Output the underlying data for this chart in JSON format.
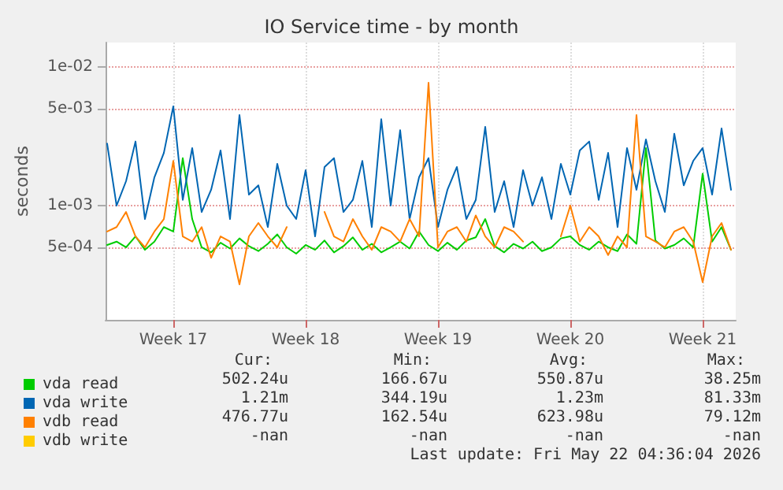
{
  "chart_data": {
    "type": "line",
    "title": "IO Service time - by month",
    "ylabel": "seconds",
    "log": "y",
    "grid": true,
    "legend": "bottom",
    "marker": "none",
    "line_style": "solid",
    "ylim": [
      0.00015,
      0.015
    ],
    "yticks": [
      {
        "value": 0.0005,
        "label": "5e-04"
      },
      {
        "value": 0.001,
        "label": "1e-03"
      },
      {
        "value": 0.005,
        "label": "5e-03"
      },
      {
        "value": 0.01,
        "label": "1e-02"
      }
    ],
    "xlim": [
      "2026-04-19T22:00",
      "2026-05-23T06:00"
    ],
    "xticks": [
      {
        "value": "2026-04-23T12:00",
        "label": "Week 17"
      },
      {
        "value": "2026-04-30T12:00",
        "label": "Week 18"
      },
      {
        "value": "2026-05-07T12:00",
        "label": "Week 19"
      },
      {
        "value": "2026-05-14T12:00",
        "label": "Week 20"
      },
      {
        "value": "2026-05-21T12:00",
        "label": "Week 21"
      }
    ],
    "x": [
      "2026-04-20T00:00",
      "2026-04-20T12:00",
      "2026-04-21T00:00",
      "2026-04-21T12:00",
      "2026-04-22T00:00",
      "2026-04-22T12:00",
      "2026-04-23T00:00",
      "2026-04-23T12:00",
      "2026-04-24T00:00",
      "2026-04-24T12:00",
      "2026-04-25T00:00",
      "2026-04-25T12:00",
      "2026-04-26T00:00",
      "2026-04-26T12:00",
      "2026-04-27T00:00",
      "2026-04-27T12:00",
      "2026-04-28T00:00",
      "2026-04-28T12:00",
      "2026-04-29T00:00",
      "2026-04-29T12:00",
      "2026-04-30T00:00",
      "2026-04-30T12:00",
      "2026-05-01T00:00",
      "2026-05-01T12:00",
      "2026-05-02T00:00",
      "2026-05-02T12:00",
      "2026-05-03T00:00",
      "2026-05-03T12:00",
      "2026-05-04T00:00",
      "2026-05-04T12:00",
      "2026-05-05T00:00",
      "2026-05-05T12:00",
      "2026-05-06T00:00",
      "2026-05-06T12:00",
      "2026-05-07T00:00",
      "2026-05-07T12:00",
      "2026-05-08T00:00",
      "2026-05-08T12:00",
      "2026-05-09T00:00",
      "2026-05-09T12:00",
      "2026-05-10T00:00",
      "2026-05-10T12:00",
      "2026-05-11T00:00",
      "2026-05-11T12:00",
      "2026-05-12T00:00",
      "2026-05-12T12:00",
      "2026-05-13T00:00",
      "2026-05-13T12:00",
      "2026-05-14T00:00",
      "2026-05-14T12:00",
      "2026-05-15T00:00",
      "2026-05-15T12:00",
      "2026-05-16T00:00",
      "2026-05-16T12:00",
      "2026-05-17T00:00",
      "2026-05-17T12:00",
      "2026-05-18T00:00",
      "2026-05-18T12:00",
      "2026-05-19T00:00",
      "2026-05-19T12:00",
      "2026-05-20T00:00",
      "2026-05-20T12:00",
      "2026-05-21T00:00",
      "2026-05-21T12:00",
      "2026-05-22T00:00",
      "2026-05-22T12:00",
      "2026-05-23T00:00"
    ],
    "series": [
      {
        "name": "vda read",
        "color": "#00cc00",
        "values": [
          0.00052,
          0.00055,
          0.0005,
          0.0006,
          0.00048,
          0.00055,
          0.0007,
          0.00065,
          0.0022,
          0.0008,
          0.0005,
          0.00046,
          0.00054,
          0.00049,
          0.00058,
          0.00051,
          0.00047,
          0.00053,
          0.00062,
          0.0005,
          0.00045,
          0.00052,
          0.00048,
          0.00056,
          0.00046,
          0.00051,
          0.00059,
          0.00048,
          0.00053,
          0.00046,
          0.0005,
          0.00055,
          0.00049,
          0.00065,
          0.00052,
          0.00047,
          0.00054,
          0.00048,
          0.00056,
          0.00059,
          0.0008,
          0.00051,
          0.00046,
          0.00053,
          0.00049,
          0.00055,
          0.00047,
          0.0005,
          0.00058,
          0.0006,
          0.00052,
          0.00048,
          0.00055,
          0.0005,
          0.00047,
          0.00062,
          0.00053,
          0.0026,
          0.00056,
          0.00049,
          0.00052,
          0.00058,
          0.0005,
          0.0017,
          0.00055,
          0.0007,
          0.00048
        ]
      },
      {
        "name": "vda write",
        "color": "#0066b3",
        "values": [
          0.0028,
          0.001,
          0.0015,
          0.0029,
          0.0008,
          0.0016,
          0.0024,
          0.0052,
          0.0011,
          0.0026,
          0.0009,
          0.0013,
          0.0025,
          0.0008,
          0.0045,
          0.0012,
          0.0014,
          0.0007,
          0.002,
          0.001,
          0.0008,
          0.0018,
          0.0006,
          0.0019,
          0.0022,
          0.0009,
          0.0011,
          0.0021,
          0.0007,
          0.0042,
          0.001,
          0.0035,
          0.0008,
          0.0016,
          0.0022,
          0.0007,
          0.0013,
          0.0019,
          0.0008,
          0.0011,
          0.0037,
          0.0009,
          0.0015,
          0.0007,
          0.0018,
          0.001,
          0.0016,
          0.0008,
          0.002,
          0.0012,
          0.0025,
          0.0029,
          0.0011,
          0.0024,
          0.0007,
          0.0026,
          0.0013,
          0.003,
          0.0015,
          0.0009,
          0.0033,
          0.0014,
          0.0021,
          0.0026,
          0.0012,
          0.0036,
          0.0013
        ]
      },
      {
        "name": "vdb read",
        "color": "#ff8000",
        "values": [
          0.00065,
          0.0007,
          0.0009,
          0.0006,
          0.0005,
          0.00065,
          0.0008,
          0.0021,
          0.0006,
          0.00055,
          0.0007,
          0.00042,
          0.0006,
          0.00055,
          0.00027,
          0.0006,
          0.00075,
          0.0006,
          0.0005,
          0.0007,
          null,
          null,
          null,
          0.0009,
          0.0006,
          0.00055,
          0.0008,
          0.0006,
          0.00048,
          0.0007,
          0.00065,
          0.00055,
          0.0008,
          0.0006,
          0.0077,
          0.0005,
          0.00065,
          0.0007,
          0.00055,
          0.00085,
          0.0006,
          0.0005,
          0.0007,
          0.00065,
          0.00055,
          null,
          null,
          null,
          0.0006,
          0.001,
          0.00055,
          0.0007,
          0.0006,
          0.00044,
          0.0006,
          0.0005,
          0.0045,
          0.0006,
          0.00055,
          0.0005,
          0.00065,
          0.0007,
          0.00055,
          0.00028,
          0.0006,
          0.00075,
          0.00048
        ]
      },
      {
        "name": "vdb write",
        "color": "#ffcc00",
        "values": [
          null,
          null,
          null,
          null,
          null,
          null,
          null,
          null,
          null,
          null,
          null,
          null,
          null,
          null,
          null,
          null,
          null,
          null,
          null,
          null,
          null,
          null,
          null,
          null,
          null,
          null,
          null,
          null,
          null,
          null,
          null,
          null,
          null,
          null,
          null,
          null,
          null,
          null,
          null,
          null,
          null,
          null,
          null,
          null,
          null,
          null,
          null,
          null,
          null,
          null,
          null,
          null,
          null,
          null,
          null,
          null,
          null,
          null,
          null,
          null,
          null,
          null,
          null,
          null,
          null,
          null,
          null
        ]
      }
    ],
    "annotations": [
      "Cur:",
      "Min:",
      "Avg:",
      "Max:",
      "502.24u",
      "166.67u",
      "550.87u",
      "38.25m",
      "1.21m",
      "344.19u",
      "1.23m",
      "81.33m",
      "476.77u",
      "162.54u",
      "623.98u",
      "79.12m",
      "-nan",
      "-nan",
      "-nan",
      "-nan",
      "Last update: Fri May 22 04:36:04 2026"
    ]
  }
}
